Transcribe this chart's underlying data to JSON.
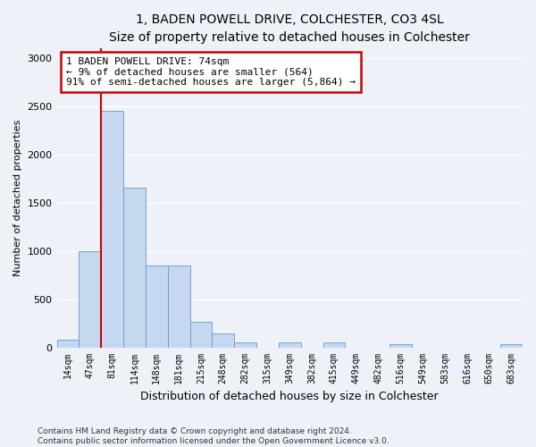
{
  "title": "1, BADEN POWELL DRIVE, COLCHESTER, CO3 4SL",
  "subtitle": "Size of property relative to detached houses in Colchester",
  "xlabel": "Distribution of detached houses by size in Colchester",
  "ylabel": "Number of detached properties",
  "categories": [
    "14sqm",
    "47sqm",
    "81sqm",
    "114sqm",
    "148sqm",
    "181sqm",
    "215sqm",
    "248sqm",
    "282sqm",
    "315sqm",
    "349sqm",
    "382sqm",
    "415sqm",
    "449sqm",
    "482sqm",
    "516sqm",
    "549sqm",
    "583sqm",
    "616sqm",
    "650sqm",
    "683sqm"
  ],
  "values": [
    75,
    1000,
    2450,
    1650,
    850,
    850,
    265,
    140,
    50,
    0,
    55,
    0,
    50,
    0,
    0,
    30,
    0,
    0,
    0,
    0,
    30
  ],
  "bar_color": "#c5d8f0",
  "bar_edge_color": "#6699cc",
  "vline_x": 1.5,
  "vline_color": "#cc0000",
  "annotation_text": "1 BADEN POWELL DRIVE: 74sqm\n← 9% of detached houses are smaller (564)\n91% of semi-detached houses are larger (5,864) →",
  "annotation_box_color": "#ffffff",
  "annotation_box_edge_color": "#cc0000",
  "ylim": [
    0,
    3100
  ],
  "yticks": [
    0,
    500,
    1000,
    1500,
    2000,
    2500,
    3000
  ],
  "footer_line1": "Contains HM Land Registry data © Crown copyright and database right 2024.",
  "footer_line2": "Contains public sector information licensed under the Open Government Licence v3.0.",
  "background_color": "#eef2f8",
  "plot_background_color": "#eef2f8",
  "grid_color": "#ffffff",
  "title_fontsize": 10,
  "subtitle_fontsize": 9
}
